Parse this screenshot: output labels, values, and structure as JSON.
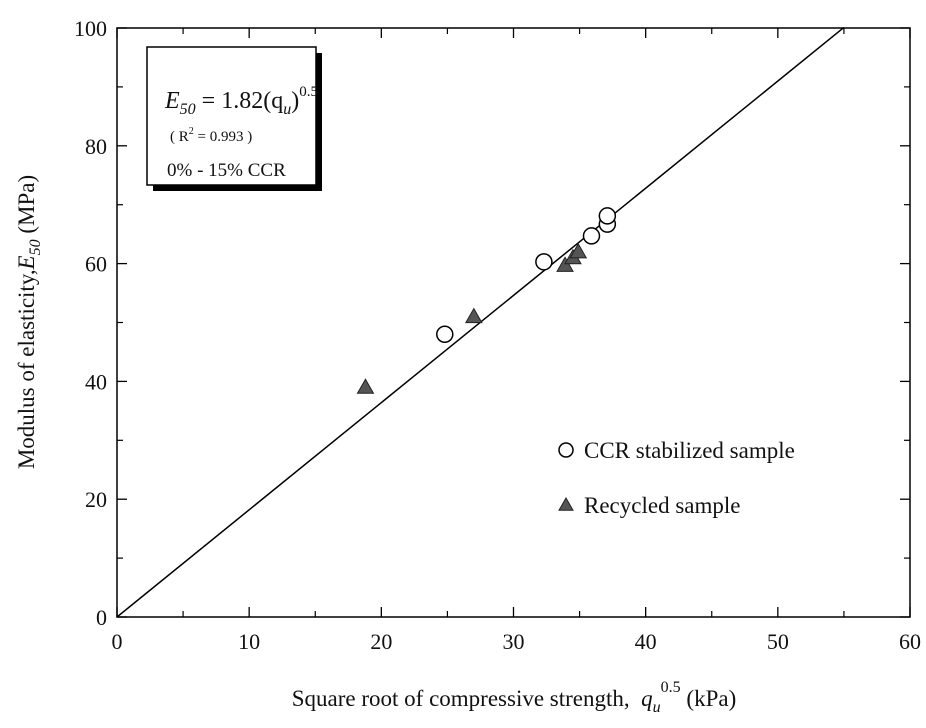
{
  "chart_data": {
    "type": "scatter",
    "x_label": [
      "Square root of compressive strength,  ",
      "q",
      "u",
      "0.5",
      " (kPa)"
    ],
    "y_label": [
      "Modulus of elasticity,",
      "E",
      "50",
      " (MPa)"
    ],
    "annotation": {
      "equation": [
        "E",
        "50",
        " = 1.82(q",
        "u",
        ")",
        "0.5"
      ],
      "r2": [
        "( R",
        "2",
        " = 0.993 )"
      ],
      "note": "0% - 15% CCR"
    },
    "xlim": [
      0,
      60
    ],
    "ylim": [
      0,
      100
    ],
    "xticks": [
      0,
      10,
      20,
      30,
      40,
      50,
      60
    ],
    "yticks": [
      0,
      20,
      40,
      60,
      80,
      100
    ],
    "xticks_minor": [
      5,
      15,
      25,
      35,
      45,
      55
    ],
    "yticks_minor": [
      10,
      30,
      50,
      70,
      90
    ],
    "grid": false,
    "legend": "lower right",
    "series": [
      {
        "name": "CCR stabilized sample",
        "color": "#000000",
        "marker": "circle",
        "x": [
          24.8,
          32.3,
          35.9,
          37.1,
          37.1
        ],
        "values": [
          48,
          60.3,
          64.7,
          66.7,
          68.1
        ]
      },
      {
        "name": "Recycled sample",
        "color": "#555555",
        "marker": "triangle",
        "x": [
          18.8,
          27,
          33.9,
          34.5,
          34.9
        ],
        "values": [
          39,
          51,
          59.7,
          61,
          62
        ]
      }
    ],
    "trend_line": {
      "x": [
        0,
        55
      ],
      "values": [
        0,
        100.1
      ]
    }
  }
}
